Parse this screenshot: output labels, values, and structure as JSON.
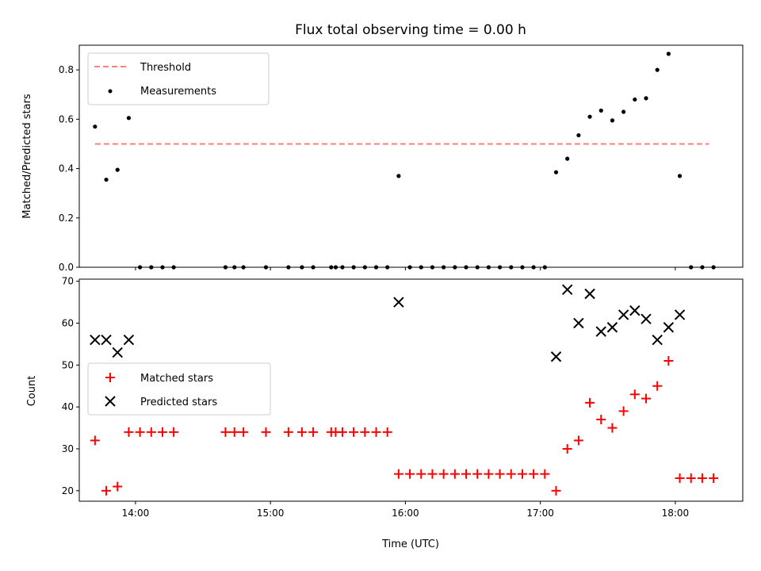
{
  "chart_data": [
    {
      "type": "scatter",
      "title": "Flux total observing time = 0.00 h",
      "xlabel": "",
      "ylabel": "Matched/Predicted stars",
      "x_axis": {
        "type": "time",
        "range": [
          "13:35",
          "18:30"
        ],
        "ticks": [
          "14:00",
          "15:00",
          "16:00",
          "17:00",
          "18:00"
        ],
        "tick_labels_shown": false
      },
      "ylim": [
        0.0,
        0.9
      ],
      "yticks": [
        "0.0",
        "0.2",
        "0.4",
        "0.6",
        "0.8"
      ],
      "grid": false,
      "legend_position": "upper-left",
      "series": [
        {
          "name": "Threshold",
          "kind": "line",
          "style": "dashed",
          "color": "#ff7f7f",
          "points": [
            {
              "x": "13:42",
              "y": 0.5
            },
            {
              "x": "18:15",
              "y": 0.5
            }
          ]
        },
        {
          "name": "Measurements",
          "kind": "scatter",
          "marker": "dot",
          "color": "#000000",
          "points": [
            {
              "x": "13:42",
              "y": 0.57
            },
            {
              "x": "13:47",
              "y": 0.355
            },
            {
              "x": "13:52",
              "y": 0.395
            },
            {
              "x": "13:57",
              "y": 0.605
            },
            {
              "x": "14:02",
              "y": 0.0
            },
            {
              "x": "14:07",
              "y": 0.0
            },
            {
              "x": "14:12",
              "y": 0.0
            },
            {
              "x": "14:17",
              "y": 0.0
            },
            {
              "x": "14:40",
              "y": 0.0
            },
            {
              "x": "14:44",
              "y": 0.0
            },
            {
              "x": "14:48",
              "y": 0.0
            },
            {
              "x": "14:58",
              "y": 0.0
            },
            {
              "x": "15:08",
              "y": 0.0
            },
            {
              "x": "15:14",
              "y": 0.0
            },
            {
              "x": "15:19",
              "y": 0.0
            },
            {
              "x": "15:27",
              "y": 0.0
            },
            {
              "x": "15:29",
              "y": 0.0
            },
            {
              "x": "15:32",
              "y": 0.0
            },
            {
              "x": "15:37",
              "y": 0.0
            },
            {
              "x": "15:42",
              "y": 0.0
            },
            {
              "x": "15:47",
              "y": 0.0
            },
            {
              "x": "15:52",
              "y": 0.0
            },
            {
              "x": "15:57",
              "y": 0.37
            },
            {
              "x": "16:02",
              "y": 0.0
            },
            {
              "x": "16:07",
              "y": 0.0
            },
            {
              "x": "16:12",
              "y": 0.0
            },
            {
              "x": "16:17",
              "y": 0.0
            },
            {
              "x": "16:22",
              "y": 0.0
            },
            {
              "x": "16:27",
              "y": 0.0
            },
            {
              "x": "16:32",
              "y": 0.0
            },
            {
              "x": "16:37",
              "y": 0.0
            },
            {
              "x": "16:42",
              "y": 0.0
            },
            {
              "x": "16:47",
              "y": 0.0
            },
            {
              "x": "16:52",
              "y": 0.0
            },
            {
              "x": "16:57",
              "y": 0.0
            },
            {
              "x": "17:02",
              "y": 0.0
            },
            {
              "x": "17:07",
              "y": 0.385
            },
            {
              "x": "17:12",
              "y": 0.44
            },
            {
              "x": "17:17",
              "y": 0.535
            },
            {
              "x": "17:22",
              "y": 0.61
            },
            {
              "x": "17:27",
              "y": 0.635
            },
            {
              "x": "17:32",
              "y": 0.595
            },
            {
              "x": "17:37",
              "y": 0.63
            },
            {
              "x": "17:42",
              "y": 0.68
            },
            {
              "x": "17:47",
              "y": 0.685
            },
            {
              "x": "17:52",
              "y": 0.8
            },
            {
              "x": "17:57",
              "y": 0.865
            },
            {
              "x": "18:02",
              "y": 0.37
            },
            {
              "x": "18:07",
              "y": 0.0
            },
            {
              "x": "18:12",
              "y": 0.0
            },
            {
              "x": "18:17",
              "y": 0.0
            }
          ]
        }
      ]
    },
    {
      "type": "scatter",
      "title": "",
      "xlabel": "Time (UTC)",
      "ylabel": "Count",
      "x_axis": {
        "type": "time",
        "range": [
          "13:35",
          "18:30"
        ],
        "ticks": [
          "14:00",
          "15:00",
          "16:00",
          "17:00",
          "18:00"
        ],
        "tick_labels_shown": true
      },
      "ylim": [
        17.5,
        70.5
      ],
      "yticks": [
        "20",
        "30",
        "40",
        "50",
        "60",
        "70"
      ],
      "grid": false,
      "legend_position": "center-left",
      "series": [
        {
          "name": "Matched stars",
          "kind": "scatter",
          "marker": "plus",
          "color": "#ff0000",
          "points": [
            {
              "x": "13:42",
              "y": 32
            },
            {
              "x": "13:47",
              "y": 20
            },
            {
              "x": "13:52",
              "y": 21
            },
            {
              "x": "13:57",
              "y": 34
            },
            {
              "x": "14:02",
              "y": 34
            },
            {
              "x": "14:07",
              "y": 34
            },
            {
              "x": "14:12",
              "y": 34
            },
            {
              "x": "14:17",
              "y": 34
            },
            {
              "x": "14:40",
              "y": 34
            },
            {
              "x": "14:44",
              "y": 34
            },
            {
              "x": "14:48",
              "y": 34
            },
            {
              "x": "14:58",
              "y": 34
            },
            {
              "x": "15:08",
              "y": 34
            },
            {
              "x": "15:14",
              "y": 34
            },
            {
              "x": "15:19",
              "y": 34
            },
            {
              "x": "15:27",
              "y": 34
            },
            {
              "x": "15:29",
              "y": 34
            },
            {
              "x": "15:32",
              "y": 34
            },
            {
              "x": "15:37",
              "y": 34
            },
            {
              "x": "15:42",
              "y": 34
            },
            {
              "x": "15:47",
              "y": 34
            },
            {
              "x": "15:52",
              "y": 34
            },
            {
              "x": "15:57",
              "y": 24
            },
            {
              "x": "16:02",
              "y": 24
            },
            {
              "x": "16:07",
              "y": 24
            },
            {
              "x": "16:12",
              "y": 24
            },
            {
              "x": "16:17",
              "y": 24
            },
            {
              "x": "16:22",
              "y": 24
            },
            {
              "x": "16:27",
              "y": 24
            },
            {
              "x": "16:32",
              "y": 24
            },
            {
              "x": "16:37",
              "y": 24
            },
            {
              "x": "16:42",
              "y": 24
            },
            {
              "x": "16:47",
              "y": 24
            },
            {
              "x": "16:52",
              "y": 24
            },
            {
              "x": "16:57",
              "y": 24
            },
            {
              "x": "17:02",
              "y": 24
            },
            {
              "x": "17:07",
              "y": 20
            },
            {
              "x": "17:12",
              "y": 30
            },
            {
              "x": "17:17",
              "y": 32
            },
            {
              "x": "17:22",
              "y": 41
            },
            {
              "x": "17:27",
              "y": 37
            },
            {
              "x": "17:32",
              "y": 35
            },
            {
              "x": "17:37",
              "y": 39
            },
            {
              "x": "17:42",
              "y": 43
            },
            {
              "x": "17:47",
              "y": 42
            },
            {
              "x": "17:52",
              "y": 45
            },
            {
              "x": "17:57",
              "y": 51
            },
            {
              "x": "18:02",
              "y": 23
            },
            {
              "x": "18:07",
              "y": 23
            },
            {
              "x": "18:12",
              "y": 23
            },
            {
              "x": "18:17",
              "y": 23
            }
          ]
        },
        {
          "name": "Predicted stars",
          "kind": "scatter",
          "marker": "x",
          "color": "#000000",
          "points": [
            {
              "x": "13:42",
              "y": 56
            },
            {
              "x": "13:47",
              "y": 56
            },
            {
              "x": "13:52",
              "y": 53
            },
            {
              "x": "13:57",
              "y": 56
            },
            {
              "x": "15:57",
              "y": 65
            },
            {
              "x": "17:07",
              "y": 52
            },
            {
              "x": "17:12",
              "y": 68
            },
            {
              "x": "17:17",
              "y": 60
            },
            {
              "x": "17:22",
              "y": 67
            },
            {
              "x": "17:27",
              "y": 58
            },
            {
              "x": "17:32",
              "y": 59
            },
            {
              "x": "17:37",
              "y": 62
            },
            {
              "x": "17:42",
              "y": 63
            },
            {
              "x": "17:47",
              "y": 61
            },
            {
              "x": "17:52",
              "y": 56
            },
            {
              "x": "17:57",
              "y": 59
            },
            {
              "x": "18:02",
              "y": 62
            }
          ]
        }
      ]
    }
  ]
}
